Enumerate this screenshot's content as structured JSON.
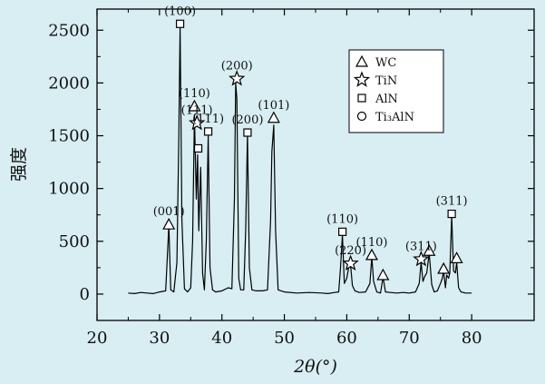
{
  "chart_data": {
    "type": "line",
    "xlabel": "2θ(°)",
    "ylabel": "强度",
    "xlim": [
      20,
      90
    ],
    "ylim": [
      -250,
      2700
    ],
    "xticks": [
      20,
      30,
      40,
      50,
      60,
      70,
      80
    ],
    "yticks": [
      0,
      500,
      1000,
      1500,
      2000,
      2500
    ],
    "grid": false,
    "legend_position": "top-right",
    "background": "#d8eef3",
    "line_color": "#000000",
    "legend": [
      {
        "marker": "triangle",
        "label": "WC"
      },
      {
        "marker": "star",
        "label": "TiN"
      },
      {
        "marker": "square",
        "label": "AlN"
      },
      {
        "marker": "circle",
        "label": "Ti₃AlN"
      }
    ],
    "peaks": [
      {
        "x": 31.5,
        "y": 660,
        "label": "(001)",
        "marker": "triangle"
      },
      {
        "x": 33.3,
        "y": 2560,
        "label": "(100)",
        "marker": "square"
      },
      {
        "x": 35.6,
        "y": 1780,
        "label": "(110)",
        "marker": "triangle"
      },
      {
        "x": 36.0,
        "y": 1620,
        "label": "(111)",
        "marker": "star"
      },
      {
        "x": 36.2,
        "y": 1380,
        "label": "",
        "marker": "square"
      },
      {
        "x": 37.8,
        "y": 1540,
        "label": "(111)",
        "marker": "square"
      },
      {
        "x": 42.4,
        "y": 2040,
        "label": "(200)",
        "marker": "star"
      },
      {
        "x": 44.1,
        "y": 1530,
        "label": "(200)",
        "marker": "square"
      },
      {
        "x": 48.3,
        "y": 1670,
        "label": "(101)",
        "marker": "triangle"
      },
      {
        "x": 59.3,
        "y": 590,
        "label": "(110)",
        "marker": "square"
      },
      {
        "x": 60.6,
        "y": 290,
        "label": "(220)",
        "marker": "star"
      },
      {
        "x": 64.0,
        "y": 370,
        "label": "(110)",
        "marker": "triangle"
      },
      {
        "x": 65.8,
        "y": 180,
        "label": "",
        "marker": "triangle"
      },
      {
        "x": 71.9,
        "y": 330,
        "label": "(311)",
        "marker": "star"
      },
      {
        "x": 73.2,
        "y": 410,
        "label": "",
        "marker": "triangle"
      },
      {
        "x": 75.5,
        "y": 240,
        "label": "",
        "marker": "triangle"
      },
      {
        "x": 76.8,
        "y": 760,
        "label": "(311)",
        "marker": "square"
      },
      {
        "x": 77.6,
        "y": 340,
        "label": "",
        "marker": "triangle"
      }
    ],
    "series": [
      {
        "x": [
          25,
          26,
          27,
          28,
          29,
          30,
          31,
          31.5,
          31.8,
          32.3,
          32.8,
          33.1,
          33.3,
          33.6,
          34.0,
          34.5,
          35.0,
          35.3,
          35.6,
          35.9,
          36.1,
          36.3,
          36.6,
          36.9,
          37.2,
          37.5,
          37.8,
          38.1,
          38.5,
          39,
          40,
          41,
          41.6,
          42.0,
          42.2,
          42.4,
          42.7,
          43.0,
          43.5,
          43.8,
          44.1,
          44.4,
          44.8,
          45.5,
          46.5,
          47.3,
          47.8,
          48.0,
          48.3,
          48.6,
          49.0,
          50,
          52,
          54,
          56,
          57,
          58,
          58.7,
          59.0,
          59.3,
          59.6,
          60.0,
          60.3,
          60.6,
          60.9,
          61.3,
          62,
          63,
          63.7,
          64.0,
          64.3,
          64.8,
          65.4,
          65.8,
          66.2,
          67,
          68,
          69,
          70,
          71,
          71.6,
          71.9,
          72.2,
          72.5,
          72.8,
          73.2,
          73.6,
          74.0,
          74.5,
          75.0,
          75.3,
          75.5,
          75.8,
          76.0,
          76.3,
          76.5,
          76.8,
          77.1,
          77.4,
          77.6,
          77.9,
          78.3,
          79,
          80
        ],
        "y": [
          10,
          5,
          15,
          10,
          5,
          20,
          30,
          650,
          40,
          20,
          300,
          1500,
          2540,
          700,
          50,
          20,
          60,
          500,
          1700,
          900,
          1320,
          600,
          1200,
          200,
          40,
          500,
          1500,
          250,
          40,
          20,
          30,
          60,
          50,
          900,
          2000,
          1850,
          150,
          40,
          40,
          600,
          1520,
          250,
          40,
          30,
          30,
          40,
          700,
          1350,
          1600,
          600,
          40,
          20,
          10,
          15,
          10,
          5,
          15,
          20,
          250,
          560,
          100,
          150,
          250,
          280,
          80,
          30,
          15,
          20,
          100,
          350,
          120,
          20,
          10,
          160,
          20,
          15,
          10,
          15,
          10,
          20,
          100,
          300,
          120,
          170,
          200,
          390,
          90,
          20,
          30,
          100,
          150,
          220,
          60,
          180,
          150,
          200,
          740,
          220,
          200,
          300,
          60,
          20,
          10,
          10
        ]
      }
    ]
  }
}
